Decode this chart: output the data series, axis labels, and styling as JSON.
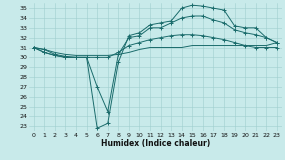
{
  "xlabel": "Humidex (Indice chaleur)",
  "background_color": "#c8eaea",
  "grid_color": "#9fcfcf",
  "line_color": "#1a6b6b",
  "xlim": [
    -0.5,
    23.5
  ],
  "ylim": [
    22.5,
    35.5
  ],
  "xtick_labels": [
    "0",
    "1",
    "2",
    "3",
    "4",
    "5",
    "6",
    "7",
    "8",
    "9",
    "10",
    "11",
    "12",
    "13",
    "14",
    "15",
    "16",
    "17",
    "18",
    "19",
    "20",
    "21",
    "22",
    "23"
  ],
  "yticks": [
    23,
    24,
    25,
    26,
    27,
    28,
    29,
    30,
    31,
    32,
    33,
    34,
    35
  ],
  "series": [
    {
      "x": [
        0,
        1,
        2,
        3,
        4,
        5,
        6,
        7,
        8,
        9,
        10,
        11,
        12,
        13,
        14,
        15,
        16,
        17,
        18,
        19,
        20,
        21,
        22,
        23
      ],
      "y": [
        31.0,
        30.8,
        30.3,
        30.1,
        30.0,
        30.0,
        22.8,
        23.3,
        29.5,
        32.2,
        32.5,
        33.3,
        33.5,
        33.7,
        35.0,
        35.3,
        35.2,
        35.0,
        34.8,
        33.2,
        33.0,
        33.0,
        32.0,
        31.5
      ],
      "marker": true
    },
    {
      "x": [
        0,
        1,
        2,
        3,
        4,
        5,
        6,
        7,
        8,
        9,
        10,
        11,
        12,
        13,
        14,
        15,
        16,
        17,
        18,
        19,
        20,
        21,
        22,
        23
      ],
      "y": [
        31.0,
        30.5,
        30.2,
        30.0,
        30.0,
        30.0,
        27.0,
        24.5,
        30.3,
        32.0,
        32.2,
        33.0,
        33.0,
        33.5,
        34.0,
        34.2,
        34.2,
        33.8,
        33.5,
        32.8,
        32.5,
        32.3,
        32.0,
        31.5
      ],
      "marker": true
    },
    {
      "x": [
        0,
        1,
        2,
        3,
        4,
        5,
        6,
        7,
        8,
        9,
        10,
        11,
        12,
        13,
        14,
        15,
        16,
        17,
        18,
        19,
        20,
        21,
        22,
        23
      ],
      "y": [
        31.0,
        30.5,
        30.2,
        30.0,
        30.0,
        30.0,
        30.0,
        30.0,
        30.5,
        31.2,
        31.5,
        31.8,
        32.0,
        32.2,
        32.3,
        32.3,
        32.2,
        32.0,
        31.8,
        31.5,
        31.2,
        31.0,
        31.0,
        31.0
      ],
      "marker": true
    },
    {
      "x": [
        0,
        1,
        2,
        3,
        4,
        5,
        6,
        7,
        8,
        9,
        10,
        11,
        12,
        13,
        14,
        15,
        16,
        17,
        18,
        19,
        20,
        21,
        22,
        23
      ],
      "y": [
        31.0,
        30.8,
        30.5,
        30.3,
        30.2,
        30.2,
        30.2,
        30.2,
        30.3,
        30.5,
        30.8,
        31.0,
        31.0,
        31.0,
        31.0,
        31.2,
        31.2,
        31.2,
        31.2,
        31.2,
        31.2,
        31.2,
        31.2,
        31.5
      ],
      "marker": false
    }
  ]
}
